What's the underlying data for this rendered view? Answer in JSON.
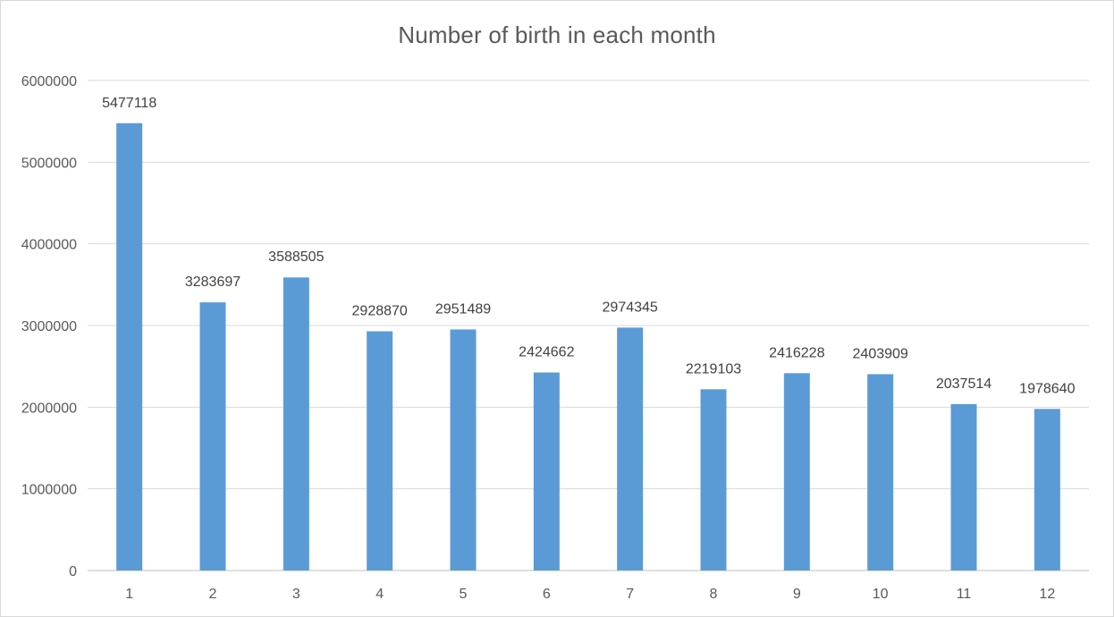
{
  "chart_data": {
    "type": "bar",
    "title": "Number of birth in each month",
    "xlabel": "",
    "ylabel": "",
    "categories": [
      "1",
      "2",
      "3",
      "4",
      "5",
      "6",
      "7",
      "8",
      "9",
      "10",
      "11",
      "12"
    ],
    "values": [
      5477118,
      3283697,
      3588505,
      2928870,
      2951489,
      2424662,
      2974345,
      2219103,
      2416228,
      2403909,
      2037514,
      1978640
    ],
    "data_labels": [
      "5477118",
      "3283697",
      "3588505",
      "2928870",
      "2951489",
      "2424662",
      "2974345",
      "2219103",
      "2416228",
      "2403909",
      "2037514",
      "1978640"
    ],
    "ylim": [
      0,
      6000000
    ],
    "yticks": [
      "0",
      "1000000",
      "2000000",
      "3000000",
      "4000000",
      "5000000",
      "6000000"
    ],
    "grid": true,
    "legend": "none",
    "bar_color": "#5b9bd5"
  }
}
